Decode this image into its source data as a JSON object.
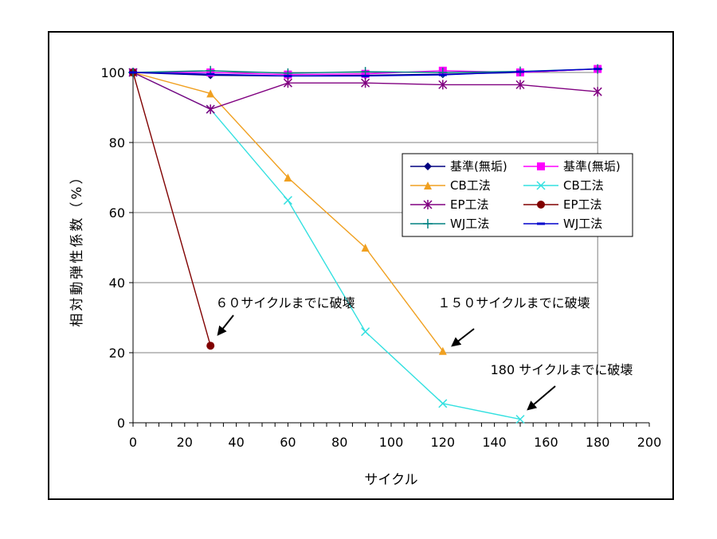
{
  "chart_data": {
    "type": "line",
    "xlabel": "サイクル",
    "ylabel": "相対動弾性係数（%）",
    "xlim": [
      0,
      200
    ],
    "ylim": [
      0,
      100
    ],
    "xticks": [
      0,
      20,
      40,
      60,
      80,
      100,
      120,
      140,
      160,
      180,
      200
    ],
    "yticks": [
      0,
      20,
      40,
      60,
      80,
      100
    ],
    "grid": "horizontal",
    "legend_position": "right",
    "series": [
      {
        "name": "基準(無垢)",
        "color": "#000080",
        "marker": "diamond",
        "x": [
          0,
          30,
          60,
          90,
          120,
          150,
          180
        ],
        "y": [
          100,
          99.2,
          99,
          99.2,
          99.5,
          100,
          101
        ]
      },
      {
        "name": "基準(無垢)",
        "color": "#ff00ff",
        "marker": "square",
        "x": [
          0,
          30,
          60,
          90,
          120,
          150,
          180
        ],
        "y": [
          100,
          100,
          99.4,
          99.6,
          100.5,
          100,
          101
        ]
      },
      {
        "name": "CB工法",
        "color": "#f0a020",
        "marker": "triangle",
        "x": [
          0,
          30,
          60,
          90,
          120
        ],
        "y": [
          100,
          94,
          70,
          50,
          20.5
        ]
      },
      {
        "name": "CB工法",
        "color": "#33e0e0",
        "marker": "x",
        "x": [
          0,
          30,
          60,
          90,
          120,
          150
        ],
        "y": [
          100,
          89.5,
          63.5,
          26,
          5.5,
          1
        ]
      },
      {
        "name": "EP工法",
        "color": "#800080",
        "marker": "asterisk",
        "x": [
          0,
          30,
          60,
          90,
          120,
          150,
          180
        ],
        "y": [
          100,
          89.5,
          97,
          97,
          96.5,
          96.5,
          94.5
        ]
      },
      {
        "name": "EP工法",
        "color": "#800000",
        "marker": "circle",
        "x": [
          0,
          30
        ],
        "y": [
          100,
          22
        ]
      },
      {
        "name": "WJ工法",
        "color": "#008080",
        "marker": "plus",
        "x": [
          0,
          30,
          60,
          90,
          120,
          150,
          180
        ],
        "y": [
          100,
          100.5,
          99.8,
          100.2,
          100,
          100.3,
          101
        ]
      },
      {
        "name": "WJ工法",
        "color": "#0000cc",
        "marker": "dash",
        "x": [
          0,
          30,
          60,
          90,
          120,
          150,
          180
        ],
        "y": [
          100,
          99.5,
          99,
          99,
          99.3,
          100.2,
          101
        ]
      }
    ],
    "annotations": [
      {
        "text": "６０サイクルまでに破壊",
        "points_to": [
          30,
          22
        ]
      },
      {
        "text": "１５０サイクルまでに破壊",
        "points_to": [
          120,
          20.5
        ]
      },
      {
        "text": "180 サイクルまでに破壊",
        "points_to": [
          150,
          1
        ]
      }
    ]
  }
}
